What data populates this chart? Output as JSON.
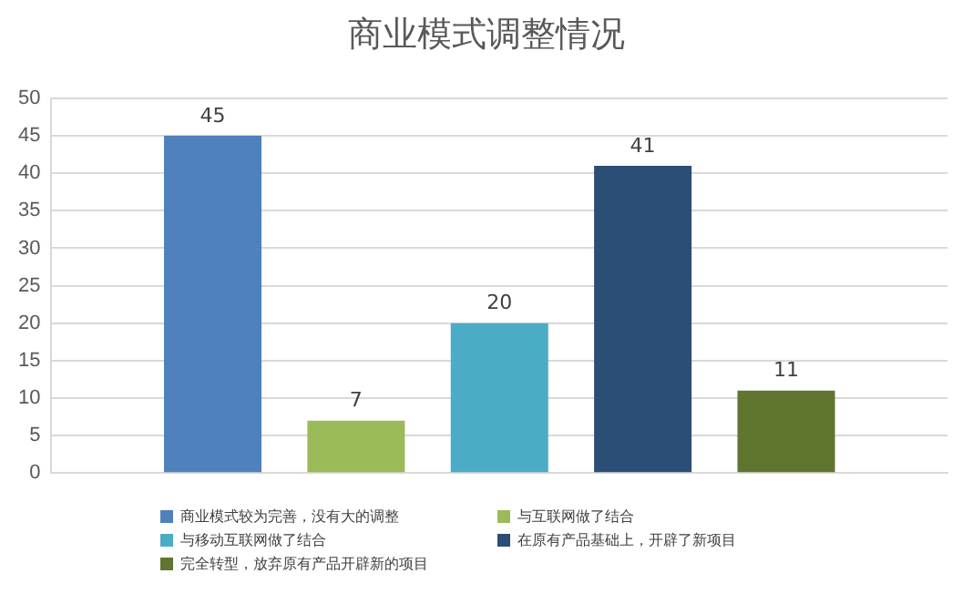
{
  "chart_data": {
    "type": "bar",
    "title": "商业模式调整情况",
    "categories": [
      null
    ],
    "series": [
      {
        "name": "商业模式较为完善，没有大的调整",
        "color": "#4f81bd",
        "values": [
          45
        ]
      },
      {
        "name": "与互联网做了结合",
        "color": "#9bbb59",
        "values": [
          7
        ]
      },
      {
        "name": "与移动互联网做了结合",
        "color": "#4bacc6",
        "values": [
          20
        ]
      },
      {
        "name": "在原有产品基础上，开辟了新项目",
        "color": "#2c4d75",
        "values": [
          41
        ]
      },
      {
        "name": "完全转型，放弃原有产品开辟新的项目",
        "color": "#5f7530",
        "values": [
          11
        ]
      }
    ],
    "ylim": [
      0,
      50
    ],
    "yticks": [
      0,
      5,
      10,
      15,
      20,
      25,
      30,
      35,
      40,
      45,
      50
    ],
    "grid": "y",
    "legend": "bottom",
    "data_labels": true
  }
}
